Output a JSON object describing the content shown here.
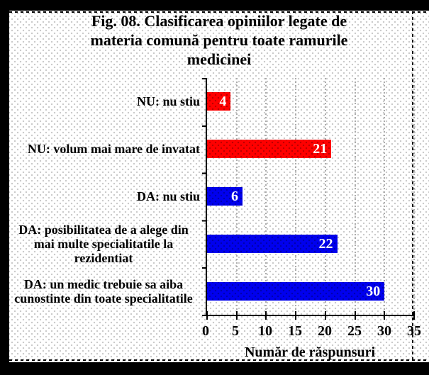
{
  "chart_data": {
    "type": "bar",
    "orientation": "horizontal",
    "title": "Fig. 08. Clasificarea opiniilor legate de\nmateria comună pentru toate ramurile\nmedicinei",
    "xlabel": "Număr de răspunsuri",
    "ylabel": "",
    "xlim": [
      0,
      35
    ],
    "xmax": 35,
    "xticks": [
      0,
      5,
      10,
      15,
      20,
      25,
      30,
      35
    ],
    "grid": "vertical dashed gray gridlines at each major tick",
    "legend": "none",
    "categories": [
      "NU: nu stiu",
      "NU: volum mai mare de invatat",
      "DA: nu stiu",
      "DA: posibilitatea de a alege din mai multe specialitatile la rezidentiat",
      "DA: un medic trebuie sa aiba cunostinte din toate specialitatile"
    ],
    "values": [
      4,
      21,
      6,
      22,
      30
    ],
    "bars": [
      {
        "label": "NU: nu stiu",
        "value": 4,
        "color": "#ff0000"
      },
      {
        "label": "NU: volum mai mare de invatat",
        "value": 21,
        "color": "#ff0000"
      },
      {
        "label": "DA: nu stiu",
        "value": 6,
        "color": "#0000ee"
      },
      {
        "label": "DA: posibilitatea de a alege din\nmai multe specialitatile la\nrezidentiat",
        "value": 22,
        "color": "#0000ee"
      },
      {
        "label": "DA: un medic trebuie sa aiba\ncunostinte din toate specialitatile",
        "value": 30,
        "color": "#0000ee"
      }
    ],
    "value_label_color": "#ffffff",
    "colors": {
      "red_bar": "#ff0000",
      "blue_bar": "#0000ee",
      "axis": "#000000",
      "gridline": "#ababab",
      "plot_background": "#ffffff",
      "surround": "#000000"
    }
  }
}
